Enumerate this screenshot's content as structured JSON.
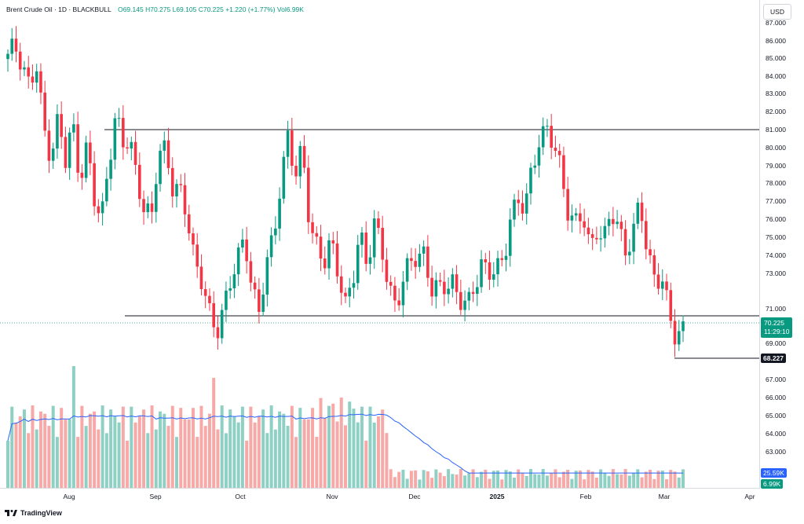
{
  "legend": {
    "symbol": "Brent Crude Oil · 1D · BLACKBULL",
    "open": "O69.145",
    "high": "H70.275",
    "low": "L69.105",
    "close": "C70.225",
    "change": "+1.220 (+1.77%)",
    "volume": "Vol6.99K"
  },
  "currency_label": "USD",
  "price_tags": {
    "last_price": "70.225",
    "countdown": "11:29:10",
    "line_price": "68.227",
    "vol_ma": "25.59K",
    "vol": "6.99K"
  },
  "brand": "TradingView",
  "colors": {
    "up": "#089981",
    "down": "#f23645",
    "up_vol": "#8fd0c5",
    "down_vol": "#f7a9a7",
    "ma": "#2962ff"
  },
  "chart_data": {
    "type": "candlestick",
    "title": "Brent Crude Oil · 1D · BLACKBULL",
    "y_ticks": [
      "87.000",
      "86.000",
      "85.000",
      "84.000",
      "83.000",
      "82.000",
      "81.000",
      "80.000",
      "79.000",
      "78.000",
      "77.000",
      "76.000",
      "75.000",
      "74.000",
      "73.000",
      "71.000",
      "69.000",
      "67.000",
      "66.000",
      "65.000",
      "64.000",
      "63.000"
    ],
    "x_ticks": [
      "Aug",
      "Sep",
      "Oct",
      "Nov",
      "Dec",
      "2025",
      "Feb",
      "Mar",
      "Apr"
    ],
    "ylim": [
      61.3,
      87.4
    ],
    "horizontal_lines": [
      81.0,
      70.6,
      68.227
    ],
    "series": [
      {
        "name": "price",
        "close_trend": [
          84.9,
          85.7,
          85.0,
          83.4,
          84.3,
          81.0,
          79.8,
          81.6,
          79.0,
          81.4,
          78.5,
          80.1,
          76.9,
          75.9,
          79.4,
          81.8,
          79.9,
          80.4,
          78.6,
          76.5,
          75.7,
          79.8,
          80.3,
          77.6,
          77.2,
          76.1,
          74.0,
          72.6,
          70.5,
          69.5,
          71.4,
          72.6,
          73.5,
          74.9,
          72.5,
          70.8,
          73.2,
          75.0,
          78.5,
          80.7,
          78.0,
          80.0,
          76.1,
          74.5,
          73.2,
          74.8,
          73.4,
          71.2,
          72.2,
          75.3,
          73.8,
          75.8,
          74.1,
          72.2,
          71.5,
          72.6,
          73.3,
          73.9,
          74.4,
          72.1,
          71.8,
          72.3,
          72.8,
          71.5,
          70.8,
          72.3,
          73.9,
          73.1,
          72.8,
          73.7,
          76.5,
          77.1,
          76.2,
          78.9,
          80.8,
          81.1,
          79.8,
          78.7,
          76.7,
          75.8,
          76.0,
          74.3,
          75.8,
          74.9,
          76.1,
          75.5,
          74.6,
          75.1,
          76.8,
          74.0,
          73.2,
          72.7,
          70.6,
          69.1,
          70.225
        ]
      }
    ],
    "volume_ma_label": "25.59K",
    "last_volume_label": "6.99K"
  }
}
